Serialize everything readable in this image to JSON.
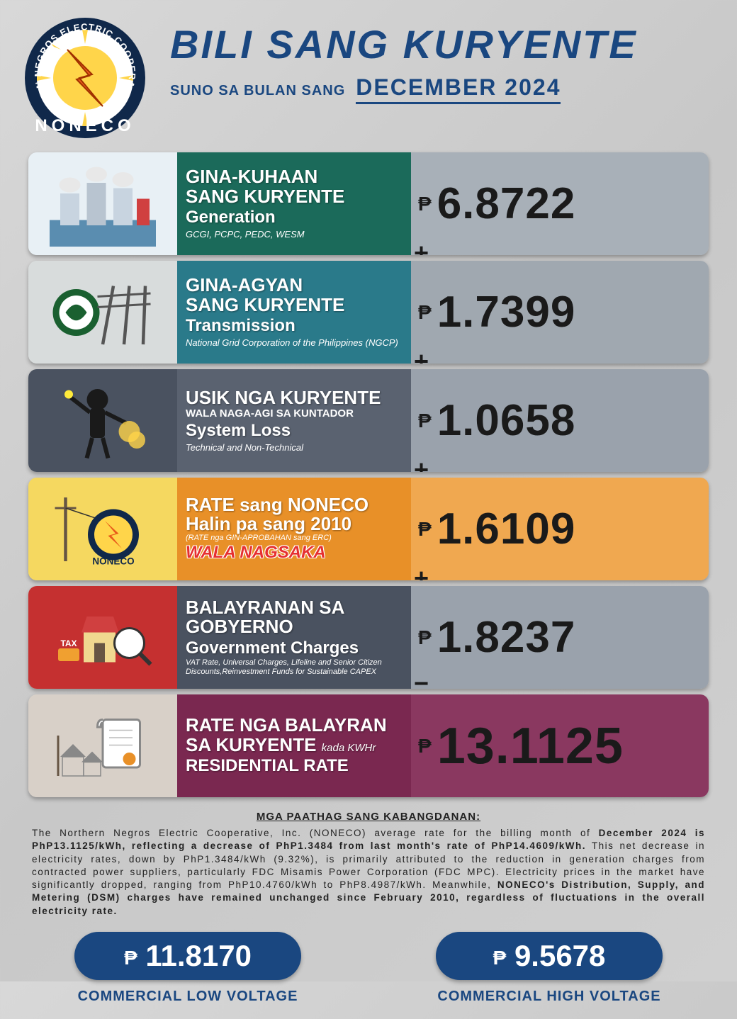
{
  "header": {
    "title": "BILI SANG KURYENTE",
    "subtitle": "SUNO SA BULAN SANG",
    "month": "DECEMBER 2024",
    "logo_text": "NONECO",
    "logo_ring_color": "#10284a",
    "logo_sun_color": "#ffd54a",
    "logo_bolt_color": "#e85a1a",
    "title_color": "#1a4780"
  },
  "currency": "₱",
  "rows": [
    {
      "id": "generation",
      "title_l1": "GINA-KUHAAN",
      "title_l2": "SANG KURYENTE",
      "sub": "Generation",
      "detail": "GCGI, PCPC, PEDC, WESM",
      "value": "6.8722",
      "operator": "+",
      "icon_bg": "#e8f0f5",
      "label_bg": "#1b6a5a",
      "value_bg": "#a8b0b8"
    },
    {
      "id": "transmission",
      "title_l1": "GINA-AGYAN",
      "title_l2": "SANG KURYENTE",
      "sub": "Transmission",
      "detail": "National Grid Corporation of the Philippines (NGCP)",
      "value": "1.7399",
      "operator": "+",
      "icon_bg": "#d8dcdc",
      "label_bg": "#2a7a8a",
      "value_bg": "#a0a8b0"
    },
    {
      "id": "systemloss",
      "title_l1": "USIK NGA KURYENTE",
      "title_l2_sm": "WALA NAGA-AGI SA KUNTADOR",
      "sub": "System Loss",
      "detail": "Technical and Non-Technical",
      "value": "1.0658",
      "operator": "+",
      "icon_bg": "#4a5260",
      "label_bg": "#5a6270",
      "value_bg": "#9aa2ac"
    },
    {
      "id": "noneco-rate",
      "title_l1": "RATE sang NONECO",
      "title_l2": "Halin pa sang 2010",
      "detail_sm": "(RATE nga GIN-APROBAHAN sang ERC)",
      "wala": "WALA NAGSAKA",
      "value": "1.6109",
      "operator": "+",
      "icon_bg": "#f5d860",
      "label_bg": "#e89028",
      "value_bg": "#f0a850"
    },
    {
      "id": "government",
      "title_l1": "BALAYRANAN SA",
      "title_l2": "GOBYERNO",
      "sub": "Government Charges",
      "detail_sm": "VAT Rate, Universal Charges, Lifeline and Senior Citizen Discounts,Reinvestment Funds for Sustainable CAPEX",
      "value": "1.8237",
      "operator": "=",
      "icon_bg": "#c53030",
      "label_bg": "#4a5260",
      "value_bg": "#9aa2ac"
    },
    {
      "id": "residential",
      "title_l1": "RATE NGA BALAYRAN",
      "title_l2_inline": "SA KURYENTE",
      "title_suffix": "kada KWHr",
      "sub": "RESIDENTIAL RATE",
      "value": "13.1125",
      "icon_bg": "#d8d0c8",
      "label_bg": "#7a2850",
      "value_bg": "#8a3860"
    }
  ],
  "notes": {
    "title": "MGA PAATHAG SANG KABANGDANAN:",
    "body_parts": [
      {
        "t": "The Northern Negros Electric Cooperative, Inc. (NONECO) average rate for the billing month of ",
        "b": false
      },
      {
        "t": "December 2024 is PhP13.1125/kWh, reflecting a decrease of PhP1.3484 from last month's rate of PhP14.4609/kWh.",
        "b": true
      },
      {
        "t": " This net decrease in electricity rates, down by PhP1.3484/kWh (9.32%), is primarily attributed to the reduction in generation charges from contracted power suppliers, particularly FDC Misamis Power Corporation (FDC MPC). Electricity prices in the market have significantly dropped, ranging from PhP10.4760/kWh to PhP8.4987/kWh. Meanwhile, ",
        "b": false
      },
      {
        "t": "NONECO's Distribution, Supply, and Metering (DSM) charges have remained unchanged since February 2010, regardless of fluctuations in the overall electricity rate.",
        "b": true
      }
    ]
  },
  "footer": {
    "low": {
      "value": "11.8170",
      "label": "COMMERCIAL LOW VOLTAGE"
    },
    "high": {
      "value": "9.5678",
      "label": "COMMERCIAL HIGH VOLTAGE"
    },
    "pill_bg": "#1a4780",
    "label_color": "#1a4780"
  }
}
